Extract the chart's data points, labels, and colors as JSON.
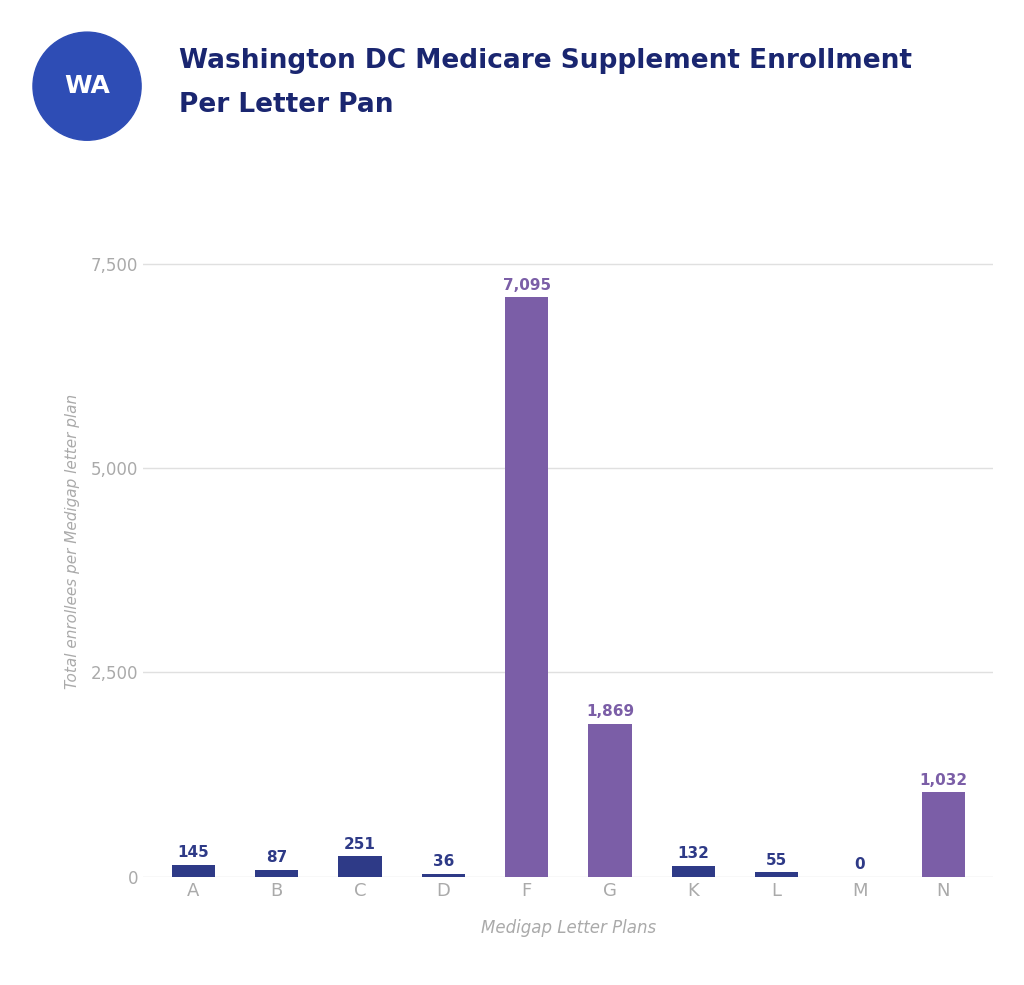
{
  "title_line1": "Washington DC Medicare Supplement Enrollment",
  "title_line2": "Per Letter Pan",
  "wa_label": "WA",
  "categories": [
    "A",
    "B",
    "C",
    "D",
    "F",
    "G",
    "K",
    "L",
    "M",
    "N"
  ],
  "values": [
    145,
    87,
    251,
    36,
    7095,
    1869,
    132,
    55,
    0,
    1032
  ],
  "bar_colors": [
    "#2e3a87",
    "#2e3a87",
    "#2e3a87",
    "#2e3a87",
    "#7b5ea7",
    "#7b5ea7",
    "#2e3a87",
    "#2e3a87",
    "#2e3a87",
    "#7b5ea7"
  ],
  "xlabel": "Medigap Letter Plans",
  "ylabel": "Total enrollees per Medigap letter plan",
  "ylim": [
    0,
    8200
  ],
  "yticks": [
    0,
    2500,
    5000,
    7500
  ],
  "ytick_labels": [
    "0",
    "2,500",
    "5,000",
    "7,500"
  ],
  "title_color": "#1a2670",
  "xlabel_color": "#aaaaaa",
  "ylabel_color": "#aaaaaa",
  "tick_label_color": "#aaaaaa",
  "value_label_color_dark": "#2e3a87",
  "value_label_color_light": "#7b5ea7",
  "grid_color": "#e0e0e0",
  "bg_color": "#ffffff",
  "wa_circle_color": "#2e4db5",
  "wa_text_color": "#ffffff"
}
